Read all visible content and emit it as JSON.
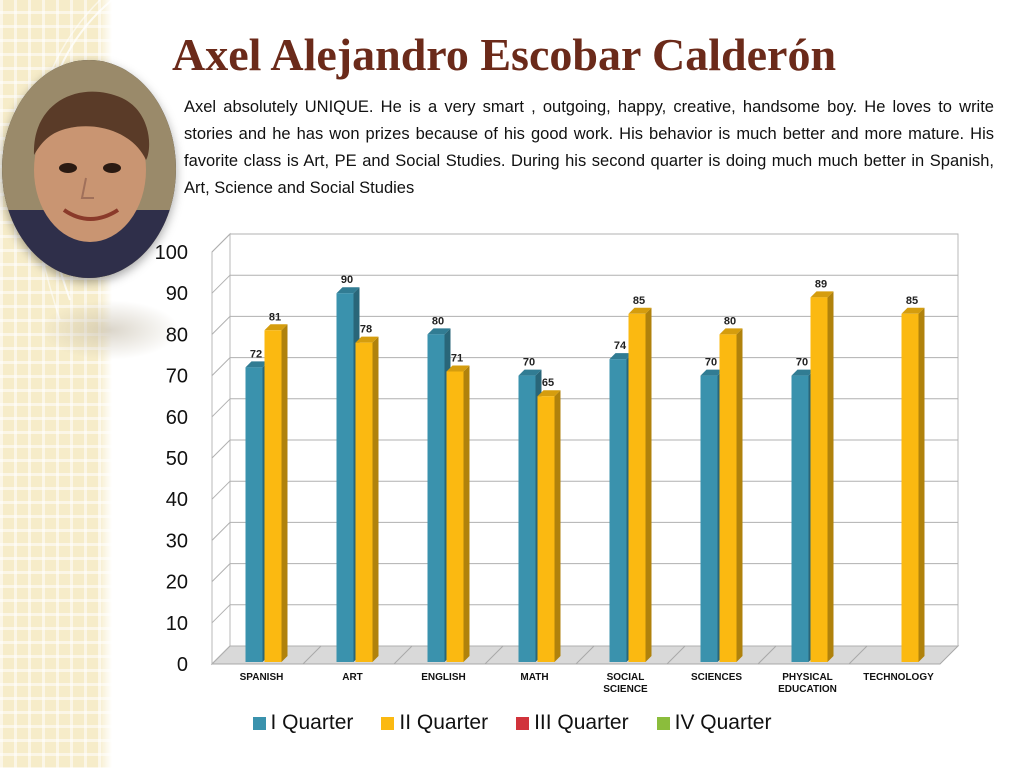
{
  "slide": {
    "title": "Axel Alejandro Escobar Calderón",
    "bio": "Axel absolutely UNIQUE.  He is a very smart , outgoing, happy, creative, handsome boy.  He loves to write stories and he has won prizes because of his good work.  His behavior is much better and more mature.  His favorite class is Art, PE and Social Studies.   During his  second quarter is doing much much better in Spanish, Art, Science and Social Studies"
  },
  "chart_data": {
    "type": "bar",
    "title": "",
    "xlabel": "",
    "ylabel": "",
    "ylim": [
      0,
      100
    ],
    "yticks": [
      0,
      10,
      20,
      30,
      40,
      50,
      60,
      70,
      80,
      90,
      100
    ],
    "grid": true,
    "legend_position": "bottom",
    "categories": [
      [
        "SPANISH"
      ],
      [
        "ART"
      ],
      [
        "ENGLISH"
      ],
      [
        "MATH"
      ],
      [
        "SOCIAL",
        "SCIENCE"
      ],
      [
        "SCIENCES"
      ],
      [
        "PHYSICAL",
        "EDUCATION"
      ],
      [
        "TECHNOLOGY"
      ]
    ],
    "series": [
      {
        "name": "I Quarter",
        "color": "#3a92ad",
        "values": [
          72,
          90,
          80,
          70,
          74,
          70,
          70,
          null
        ]
      },
      {
        "name": "II Quarter",
        "color": "#fbb911",
        "values": [
          81,
          78,
          71,
          65,
          85,
          80,
          89,
          85
        ]
      },
      {
        "name": "III Quarter",
        "color": "#d1333b",
        "values": [
          null,
          null,
          null,
          null,
          null,
          null,
          null,
          null
        ]
      },
      {
        "name": "IV Quarter",
        "color": "#8bbd3c",
        "values": [
          null,
          null,
          null,
          null,
          null,
          null,
          null,
          null
        ]
      }
    ]
  }
}
